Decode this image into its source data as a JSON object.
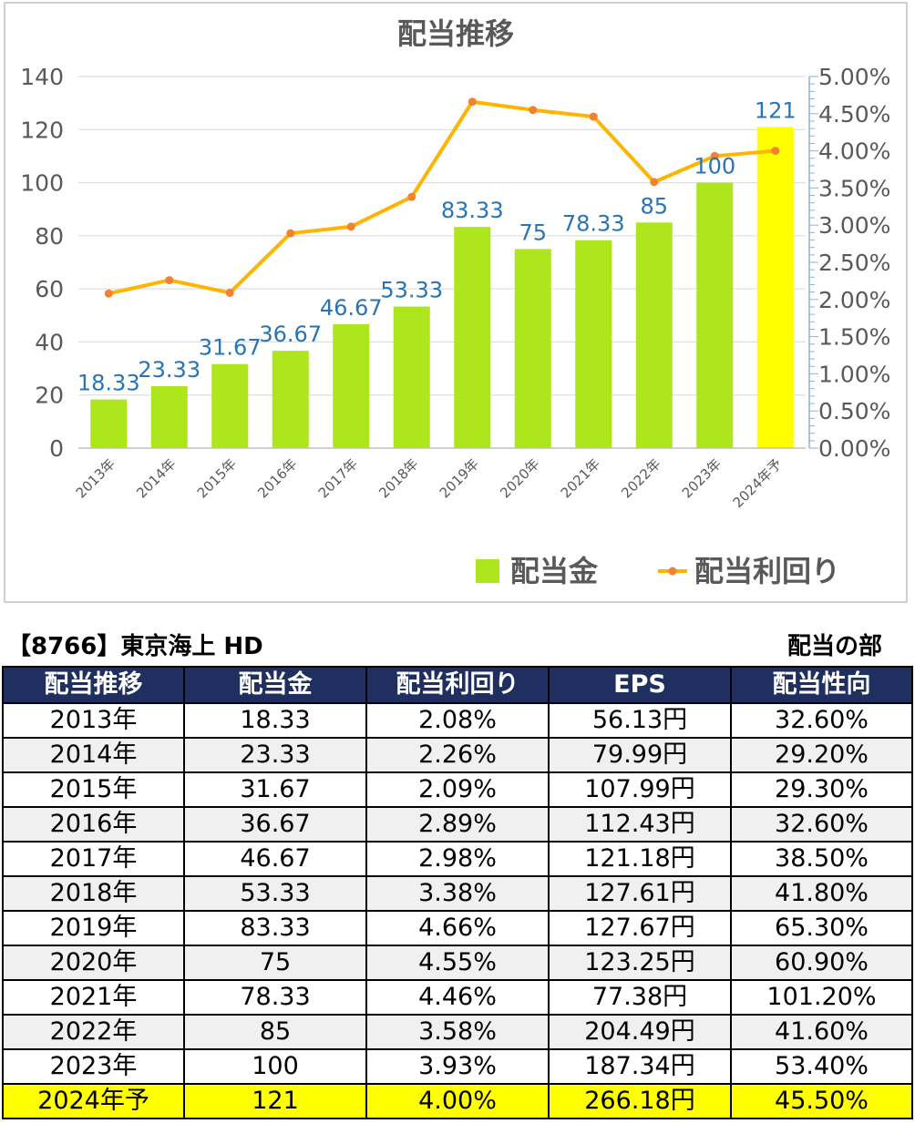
{
  "chart_data": {
    "type": "bar",
    "title": "配当推移",
    "categories": [
      "2013年",
      "2014年",
      "2015年",
      "2016年",
      "2017年",
      "2018年",
      "2019年",
      "2020年",
      "2021年",
      "2022年",
      "2023年",
      "2024年予"
    ],
    "series": [
      {
        "name": "配当金",
        "type": "bar",
        "axis": "left",
        "values": [
          18.33,
          23.33,
          31.67,
          36.67,
          46.67,
          53.33,
          83.33,
          75,
          78.33,
          85,
          100,
          121
        ],
        "data_labels": [
          "18.33",
          "23.33",
          "31.67",
          "36.67",
          "46.67",
          "53.33",
          "83.33",
          "75",
          "78.33",
          "85",
          "100",
          "121"
        ]
      },
      {
        "name": "配当利回り",
        "type": "line",
        "axis": "right",
        "values": [
          2.08,
          2.26,
          2.09,
          2.89,
          2.98,
          3.38,
          4.66,
          4.55,
          4.46,
          3.58,
          3.93,
          4.0
        ]
      }
    ],
    "y_left": {
      "ticks": [
        "0",
        "20",
        "40",
        "60",
        "80",
        "100",
        "120",
        "140"
      ],
      "range": [
        0,
        140
      ]
    },
    "y_right": {
      "ticks": [
        "0.00%",
        "0.50%",
        "1.00%",
        "1.50%",
        "2.00%",
        "2.50%",
        "3.00%",
        "3.50%",
        "4.00%",
        "4.50%",
        "5.00%"
      ],
      "range": [
        0,
        5
      ]
    },
    "legend_position": "bottom-right",
    "grid": true,
    "colors": {
      "bar": "#aee61e",
      "bar_highlight": "#ffff00",
      "line": "#ffb400",
      "marker": "#f08232",
      "data_label": "#2874b4",
      "grid": "#d9d9d9",
      "axis_right": "#8fb0d8"
    }
  },
  "table": {
    "company": "【8766】東京海上 HD",
    "section": "配当の部",
    "headers": [
      "配当推移",
      "配当金",
      "配当利回り",
      "EPS",
      "配当性向"
    ],
    "rows": [
      [
        "2013年",
        "18.33",
        "2.08%",
        "56.13円",
        "32.60%"
      ],
      [
        "2014年",
        "23.33",
        "2.26%",
        "79.99円",
        "29.20%"
      ],
      [
        "2015年",
        "31.67",
        "2.09%",
        "107.99円",
        "29.30%"
      ],
      [
        "2016年",
        "36.67",
        "2.89%",
        "112.43円",
        "32.60%"
      ],
      [
        "2017年",
        "46.67",
        "2.98%",
        "121.18円",
        "38.50%"
      ],
      [
        "2018年",
        "53.33",
        "3.38%",
        "127.61円",
        "41.80%"
      ],
      [
        "2019年",
        "83.33",
        "4.66%",
        "127.67円",
        "65.30%"
      ],
      [
        "2020年",
        "75",
        "4.55%",
        "123.25円",
        "60.90%"
      ],
      [
        "2021年",
        "78.33",
        "4.46%",
        "77.38円",
        "101.20%"
      ],
      [
        "2022年",
        "85",
        "3.58%",
        "204.49円",
        "41.60%"
      ],
      [
        "2023年",
        "100",
        "3.93%",
        "187.34円",
        "53.40%"
      ],
      [
        "2024年予",
        "121",
        "4.00%",
        "266.18円",
        "45.50%"
      ]
    ]
  }
}
